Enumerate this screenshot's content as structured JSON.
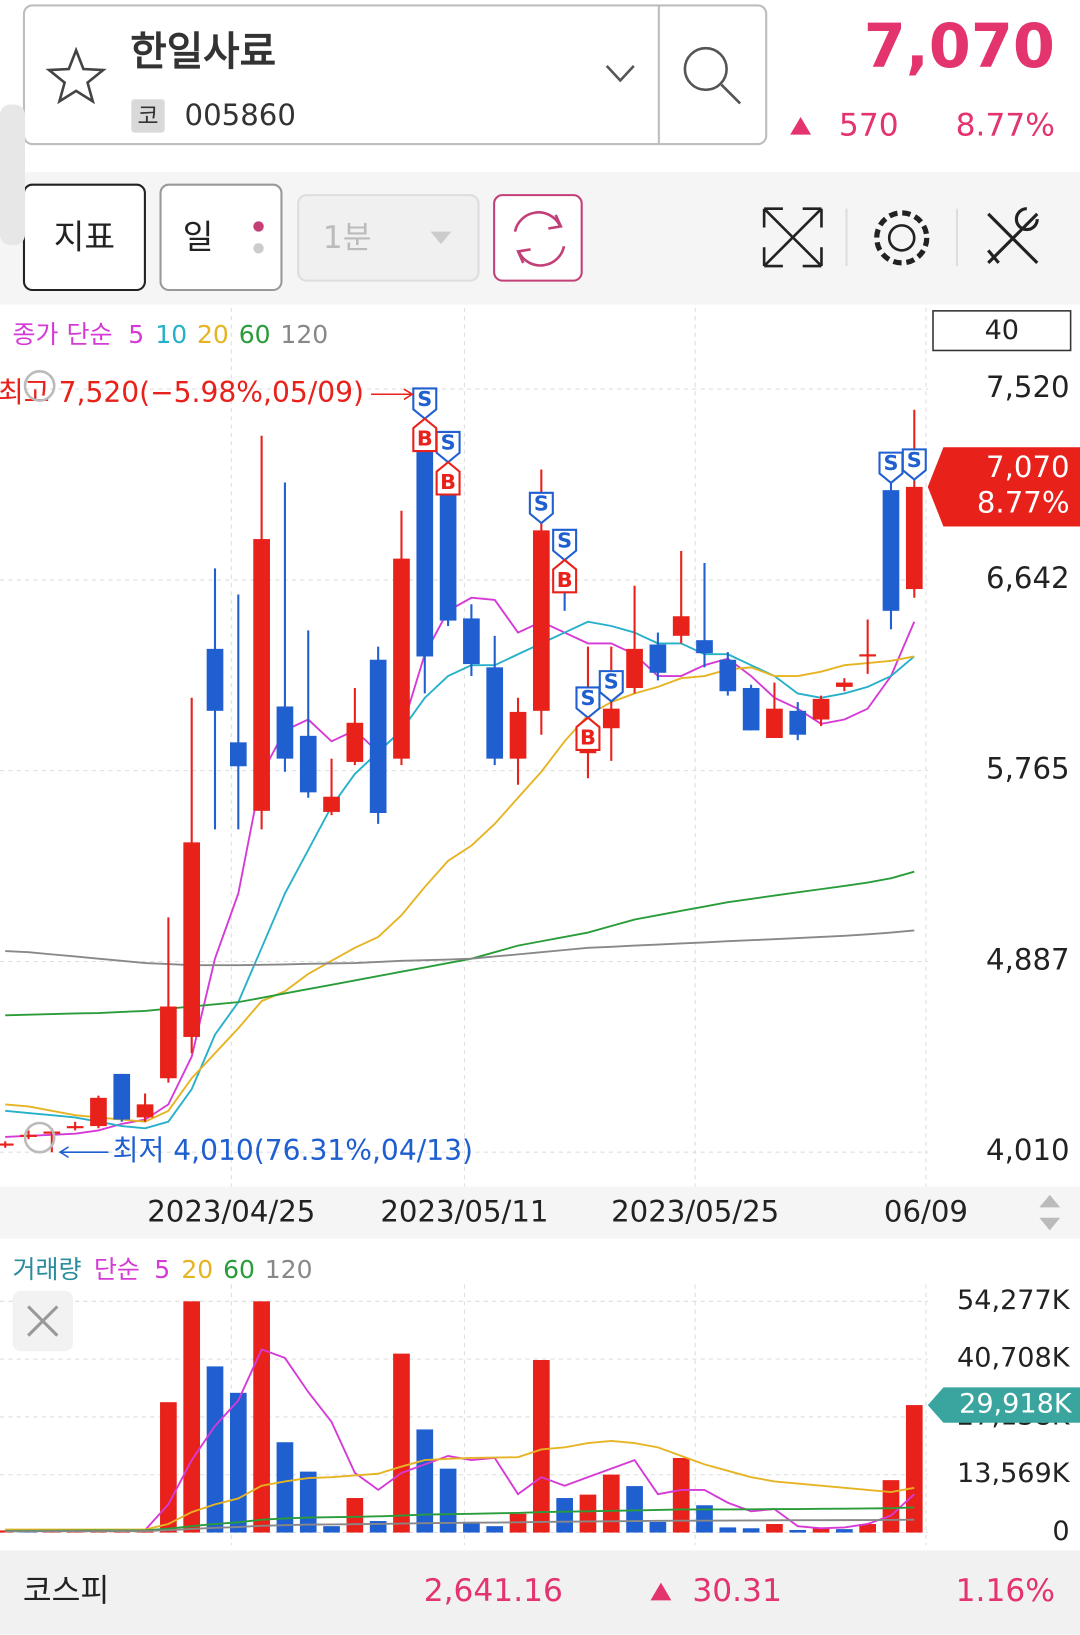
{
  "header": {
    "name": "한일사료",
    "code_badge": "코",
    "code": "005860",
    "price": "7,070",
    "change": "570",
    "change_pct": "8.77%"
  },
  "toolbar": {
    "indicator": "지표",
    "period": "일",
    "minute": "1분"
  },
  "chart_data": [
    {
      "type": "candlestick",
      "legend_title": "종가 단순",
      "visible_count": 40,
      "up_color": "#e8211b",
      "down_color": "#1f5fd0",
      "open": [
        4040,
        4080,
        4095,
        4120,
        4130,
        4370,
        4170,
        4350,
        4540,
        6325,
        5895,
        5580,
        6060,
        5925,
        5575,
        5805,
        6275,
        5820,
        7350,
        7150,
        6465,
        6240,
        5820,
        6040,
        6700,
        5845,
        5960,
        6145,
        6345,
        6385,
        6365,
        6275,
        6145,
        5915,
        6040,
        6000,
        6150,
        6290,
        7055,
        6600
      ],
      "high": [
        4060,
        4110,
        4120,
        4150,
        4270,
        4370,
        4280,
        5090,
        6100,
        6695,
        6575,
        7305,
        7090,
        6410,
        5820,
        6145,
        6335,
        6960,
        7520,
        7295,
        6530,
        6385,
        6100,
        7150,
        6780,
        6335,
        6335,
        6615,
        6400,
        6775,
        6720,
        6310,
        6160,
        6170,
        6080,
        6110,
        6190,
        6460,
        7125,
        7425
      ],
      "low": [
        4030,
        4070,
        4010,
        4110,
        4120,
        4150,
        4150,
        4330,
        4465,
        5495,
        5495,
        5495,
        5760,
        5640,
        5560,
        5790,
        5520,
        5790,
        6120,
        6430,
        6200,
        5790,
        5700,
        5930,
        6500,
        5730,
        5810,
        6120,
        6180,
        6350,
        6240,
        6110,
        5950,
        5915,
        5905,
        5970,
        6130,
        6210,
        6415,
        6560
      ],
      "close": [
        4050,
        4090,
        4105,
        4130,
        4260,
        4160,
        4230,
        4680,
        5435,
        6040,
        5785,
        6830,
        5820,
        5665,
        5645,
        5985,
        5570,
        6740,
        6290,
        6455,
        6255,
        5820,
        6035,
        6870,
        6650,
        5975,
        6050,
        6325,
        6215,
        6475,
        6305,
        6130,
        5950,
        6050,
        5930,
        6095,
        6170,
        6300,
        6500,
        7070
      ],
      "series": [
        {
          "name": "5",
          "color": "#d63ad6",
          "values": [
            4080,
            4085,
            4090,
            4095,
            4110,
            4140,
            4160,
            4230,
            4450,
            4900,
            5200,
            5750,
            5950,
            6000,
            5900,
            5950,
            5850,
            5950,
            6300,
            6500,
            6560,
            6550,
            6400,
            6450,
            6400,
            6350,
            6350,
            6300,
            6200,
            6200,
            6250,
            6280,
            6200,
            6100,
            6050,
            5980,
            6000,
            6050,
            6200,
            6450
          ]
        },
        {
          "name": "10",
          "color": "#26b0c9",
          "values": [
            4200,
            4190,
            4180,
            4170,
            4150,
            4130,
            4120,
            4150,
            4300,
            4550,
            4700,
            4950,
            5200,
            5400,
            5600,
            5750,
            5850,
            5950,
            6100,
            6200,
            6250,
            6250,
            6300,
            6350,
            6400,
            6450,
            6430,
            6400,
            6350,
            6350,
            6300,
            6300,
            6250,
            6200,
            6120,
            6100,
            6120,
            6150,
            6200,
            6290
          ]
        },
        {
          "name": "20",
          "color": "#e6b422",
          "values": [
            4230,
            4220,
            4200,
            4180,
            4170,
            4160,
            4150,
            4200,
            4350,
            4465,
            4580,
            4705,
            4750,
            4830,
            4890,
            4950,
            5000,
            5100,
            5230,
            5350,
            5420,
            5520,
            5640,
            5760,
            5900,
            6020,
            6080,
            6120,
            6150,
            6190,
            6200,
            6230,
            6240,
            6200,
            6200,
            6220,
            6250,
            6260,
            6270,
            6290
          ]
        },
        {
          "name": "60",
          "color": "#2a9d3a",
          "values": [
            4640,
            4642,
            4645,
            4648,
            4650,
            4655,
            4660,
            4670,
            4680,
            4690,
            4700,
            4720,
            4740,
            4760,
            4780,
            4800,
            4820,
            4840,
            4860,
            4880,
            4900,
            4930,
            4960,
            4980,
            5000,
            5020,
            5050,
            5080,
            5100,
            5120,
            5140,
            5160,
            5175,
            5190,
            5205,
            5220,
            5235,
            5250,
            5270,
            5300
          ]
        },
        {
          "name": "120",
          "color": "#888888",
          "values": [
            4935,
            4930,
            4920,
            4910,
            4900,
            4890,
            4880,
            4875,
            4870,
            4870,
            4870,
            4872,
            4874,
            4876,
            4878,
            4880,
            4885,
            4890,
            4893,
            4896,
            4900,
            4910,
            4920,
            4930,
            4940,
            4950,
            4955,
            4960,
            4965,
            4970,
            4975,
            4980,
            4985,
            4990,
            4995,
            5000,
            5005,
            5012,
            5020,
            5030
          ]
        }
      ],
      "ylim": [
        3852,
        7894
      ],
      "yticks": [
        {
          "value": 4010,
          "label": "4,010"
        },
        {
          "value": 4887,
          "label": "4,887"
        },
        {
          "value": 5765,
          "label": "5,765"
        },
        {
          "value": 6642,
          "label": "6,642"
        },
        {
          "value": 7520,
          "label": "7,520"
        }
      ],
      "xticks": [
        {
          "value": 9.7,
          "label": "2023/04/25"
        },
        {
          "value": 19.7,
          "label": "2023/05/11"
        },
        {
          "value": 29.6,
          "label": "2023/05/25"
        },
        {
          "value": 39.5,
          "label": "06/09"
        }
      ],
      "grid": true,
      "price_tag": {
        "value": 7070,
        "label": "7,070",
        "pct": "8.77%"
      },
      "high_note": "최고 7,520(−5.98%,05/09)",
      "low_note": "최저 4,010(76.31%,04/13)",
      "signals": [
        {
          "index": 18,
          "label": "S"
        },
        {
          "index": 19,
          "label": "S"
        },
        {
          "index": 23,
          "label": "S"
        },
        {
          "index": 24,
          "label": "S"
        },
        {
          "index": 25,
          "label": "S"
        },
        {
          "index": 26,
          "label": "S"
        },
        {
          "index": 38,
          "label": "S"
        },
        {
          "index": 39,
          "label": "S"
        },
        {
          "index": 18,
          "label": "B"
        },
        {
          "index": 19,
          "label": "B"
        },
        {
          "index": 24,
          "label": "B"
        },
        {
          "index": 25,
          "label": "B"
        }
      ]
    },
    {
      "type": "bar",
      "volume_label": "거래량",
      "legend_title": "단순",
      "up_color": "#e8211b",
      "down_color": "#1f5fd0",
      "values": [
        500,
        450,
        500,
        600,
        600,
        650,
        700,
        30600,
        54277,
        39000,
        32800,
        54277,
        21200,
        14300,
        1500,
        8100,
        2700,
        42000,
        24200,
        15000,
        2500,
        1500,
        4400,
        40500,
        8100,
        8900,
        13600,
        10900,
        2500,
        17500,
        6400,
        1200,
        1000,
        2000,
        600,
        1200,
        800,
        2000,
        12300,
        29918
      ],
      "series": [
        {
          "name": "5",
          "color": "#d63ad6",
          "values": [
            500,
            500,
            500,
            520,
            540,
            560,
            600,
            6600,
            17000,
            25000,
            31000,
            43000,
            41000,
            33000,
            26000,
            14000,
            10000,
            14000,
            16000,
            18000,
            17000,
            17500,
            9000,
            13000,
            11000,
            13000,
            15000,
            17000,
            9000,
            10000,
            10000,
            7000,
            5000,
            5500,
            1500,
            1000,
            1200,
            2000,
            4000,
            9000
          ]
        },
        {
          "name": "20",
          "color": "#e6b422",
          "values": [
            700,
            700,
            700,
            700,
            700,
            700,
            700,
            2000,
            4800,
            6600,
            8000,
            11000,
            12000,
            12800,
            13000,
            13400,
            13800,
            15500,
            17000,
            17300,
            17500,
            17600,
            17700,
            19500,
            20000,
            21000,
            21500,
            21000,
            20000,
            18000,
            16000,
            14500,
            13000,
            12000,
            11500,
            11000,
            10500,
            10000,
            9500,
            10500
          ]
        },
        {
          "name": "60",
          "color": "#2a9d3a",
          "values": [
            400,
            420,
            440,
            460,
            480,
            500,
            520,
            900,
            1500,
            2000,
            2400,
            3000,
            3300,
            3500,
            3600,
            3700,
            3800,
            4000,
            4200,
            4300,
            4400,
            4500,
            4600,
            4800,
            4900,
            5000,
            5100,
            5200,
            5300,
            5400,
            5400,
            5400,
            5450,
            5500,
            5500,
            5550,
            5600,
            5650,
            5700,
            5900
          ]
        },
        {
          "name": "120",
          "color": "#888888",
          "values": [
            300,
            300,
            310,
            320,
            330,
            340,
            350,
            550,
            850,
            1100,
            1300,
            1600,
            1750,
            1850,
            1900,
            1950,
            2000,
            2100,
            2200,
            2250,
            2300,
            2350,
            2400,
            2500,
            2550,
            2600,
            2650,
            2700,
            2750,
            2800,
            2800,
            2820,
            2840,
            2860,
            2880,
            2900,
            2920,
            2940,
            2960,
            3000
          ]
        }
      ],
      "ylim": [
        -2960,
        58220
      ],
      "yticks": [
        0,
        {
          "value": 13569,
          "label": "13,569K"
        },
        {
          "value": 27138,
          "label": "27,138K"
        },
        {
          "value": 40708,
          "label": "40,708K"
        },
        {
          "value": 54277,
          "label": "54,277K"
        }
      ],
      "grid": true,
      "volume_tag": {
        "value": 29918,
        "label": "29,918K"
      }
    }
  ],
  "footer": {
    "market": "코스피",
    "index": "2,641.16",
    "change": "30.31",
    "pct": "1.16%"
  }
}
